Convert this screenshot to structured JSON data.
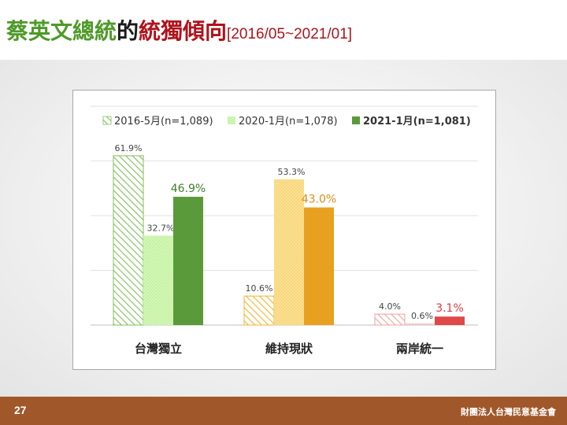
{
  "slide": {
    "title_part1": "蔡英文總統",
    "title_part2": "的",
    "title_part3": "統獨傾向",
    "title_dates": "[2016/05~2021/01]",
    "page_number": "27",
    "organization": "財團法人台灣民意基金會"
  },
  "chart_data": {
    "type": "bar",
    "categories": [
      "台灣獨立",
      "維持現狀",
      "兩岸統一"
    ],
    "series": [
      {
        "name": "2016-5月(n=1,089)",
        "values": [
          61.9,
          10.6,
          4.0
        ]
      },
      {
        "name": "2020-1月(n=1,078)",
        "values": [
          32.7,
          53.3,
          0.6
        ]
      },
      {
        "name": "2021-1月(n=1,081)",
        "values": [
          46.9,
          43.0,
          3.1
        ]
      }
    ],
    "data_labels": [
      [
        "61.9%",
        "10.6%",
        "4.0%"
      ],
      [
        "32.7%",
        "53.3%",
        "0.6%"
      ],
      [
        "46.9%",
        "43.0%",
        "3.1%"
      ]
    ],
    "ylim": [
      0,
      80
    ],
    "grid": true,
    "legend_position": "top",
    "legend_colors": [
      "#7fbf5a",
      "#c6f3a4",
      "#5a9a3a"
    ],
    "colors_by_category": {
      "台灣獨立": [
        "#7fbf5a",
        "#c6f3a4",
        "#5a9a3a"
      ],
      "維持現狀": [
        "#f2b532",
        "#f8d77a",
        "#e8a020"
      ],
      "兩岸統一": [
        "#f0a0a0",
        "#f3c0c0",
        "#e04848"
      ]
    },
    "label_colors_latest": [
      "#3f7f2a",
      "#e08a1a",
      "#e03c3c"
    ]
  }
}
